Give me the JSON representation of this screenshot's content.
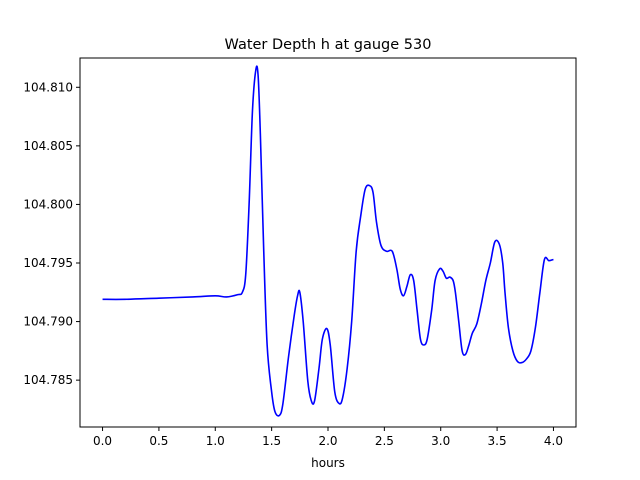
{
  "chart_data": {
    "type": "line",
    "title": "Water Depth h at gauge 530",
    "xlabel": "hours",
    "ylabel": "",
    "xlim": [
      -0.2,
      4.2
    ],
    "ylim": [
      104.781,
      104.8125
    ],
    "xticks": [
      0.0,
      0.5,
      1.0,
      1.5,
      2.0,
      2.5,
      3.0,
      3.5,
      4.0
    ],
    "xtick_labels": [
      "0.0",
      "0.5",
      "1.0",
      "1.5",
      "2.0",
      "2.5",
      "3.0",
      "3.5",
      "4.0"
    ],
    "yticks": [
      104.785,
      104.79,
      104.795,
      104.8,
      104.805,
      104.81
    ],
    "ytick_labels": [
      "104.785",
      "104.790",
      "104.795",
      "104.800",
      "104.805",
      "104.810"
    ],
    "grid": false,
    "series": [
      {
        "color": "#0000ff",
        "x": [
          0.0,
          0.2,
          0.5,
          0.8,
          1.0,
          1.1,
          1.2,
          1.24,
          1.27,
          1.3,
          1.33,
          1.36,
          1.38,
          1.4,
          1.43,
          1.46,
          1.5,
          1.53,
          1.57,
          1.6,
          1.65,
          1.7,
          1.73,
          1.75,
          1.78,
          1.82,
          1.85,
          1.88,
          1.92,
          1.95,
          1.99,
          2.02,
          2.06,
          2.1,
          2.13,
          2.17,
          2.21,
          2.25,
          2.29,
          2.33,
          2.37,
          2.4,
          2.43,
          2.47,
          2.52,
          2.57,
          2.61,
          2.64,
          2.67,
          2.7,
          2.73,
          2.76,
          2.79,
          2.82,
          2.85,
          2.88,
          2.92,
          2.95,
          2.99,
          3.02,
          3.05,
          3.08,
          3.11,
          3.13,
          3.16,
          3.19,
          3.22,
          3.25,
          3.28,
          3.32,
          3.36,
          3.4,
          3.44,
          3.48,
          3.52,
          3.55,
          3.57,
          3.6,
          3.64,
          3.68,
          3.72,
          3.76,
          3.8,
          3.84,
          3.88,
          3.92,
          3.96,
          4.0
        ],
        "values": [
          104.7919,
          104.7919,
          104.792,
          104.7921,
          104.7922,
          104.7921,
          104.7923,
          104.7925,
          104.794,
          104.8,
          104.808,
          104.8115,
          104.811,
          104.806,
          104.796,
          104.788,
          104.784,
          104.7823,
          104.782,
          104.783,
          104.787,
          104.7905,
          104.7922,
          104.7925,
          104.79,
          104.785,
          104.7833,
          104.7832,
          104.786,
          104.7885,
          104.7894,
          104.788,
          104.784,
          104.783,
          104.7835,
          104.786,
          104.79,
          104.796,
          104.799,
          104.8013,
          104.8016,
          104.801,
          104.7985,
          104.7965,
          104.796,
          104.796,
          104.7945,
          104.7928,
          104.7922,
          104.793,
          104.794,
          104.7935,
          104.791,
          104.7885,
          104.788,
          104.7885,
          104.791,
          104.7935,
          104.7945,
          104.7943,
          104.7937,
          104.7938,
          104.7935,
          104.7925,
          104.79,
          104.7875,
          104.7872,
          104.788,
          104.789,
          104.7898,
          104.7915,
          104.7935,
          104.795,
          104.7968,
          104.7966,
          104.795,
          104.7925,
          104.7895,
          104.7875,
          104.7866,
          104.7865,
          104.7868,
          104.7875,
          104.7895,
          104.7925,
          104.7953,
          104.7952,
          104.7953
        ]
      }
    ]
  }
}
